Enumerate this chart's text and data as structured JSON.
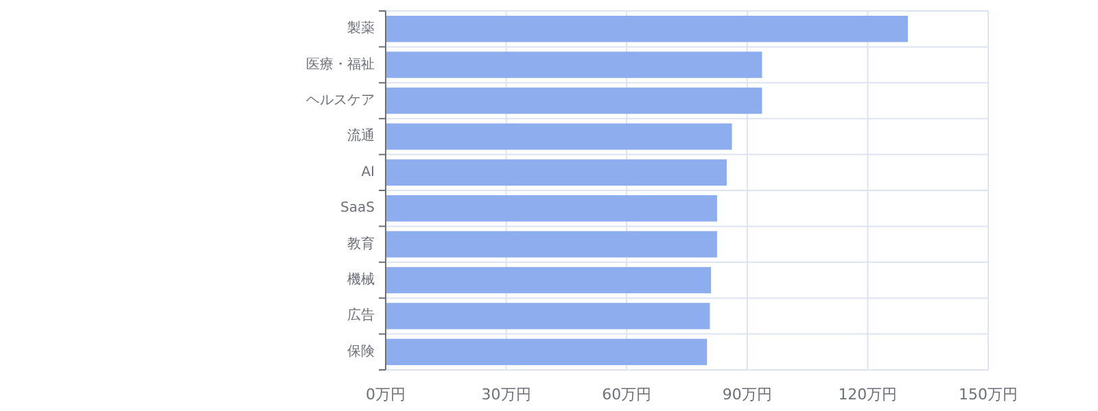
{
  "chart_data": {
    "type": "bar",
    "orientation": "horizontal",
    "categories": [
      "製薬",
      "医療・福祉",
      "ヘルスケア",
      "流通",
      "AI",
      "SaaS",
      "教育",
      "機械",
      "広告",
      "保険"
    ],
    "values": [
      130,
      93.7,
      93.7,
      86.2,
      84.9,
      82.5,
      82.5,
      81,
      80.7,
      80
    ],
    "color": "#8eadee",
    "xlim": [
      0,
      150
    ],
    "xticks": [
      {
        "value": 0,
        "label": "0万円"
      },
      {
        "value": 30,
        "label": "30万円"
      },
      {
        "value": 60,
        "label": "60万円"
      },
      {
        "value": 90,
        "label": "90万円"
      },
      {
        "value": 120,
        "label": "120万円"
      },
      {
        "value": 150,
        "label": "150万円"
      }
    ],
    "grid": true
  }
}
